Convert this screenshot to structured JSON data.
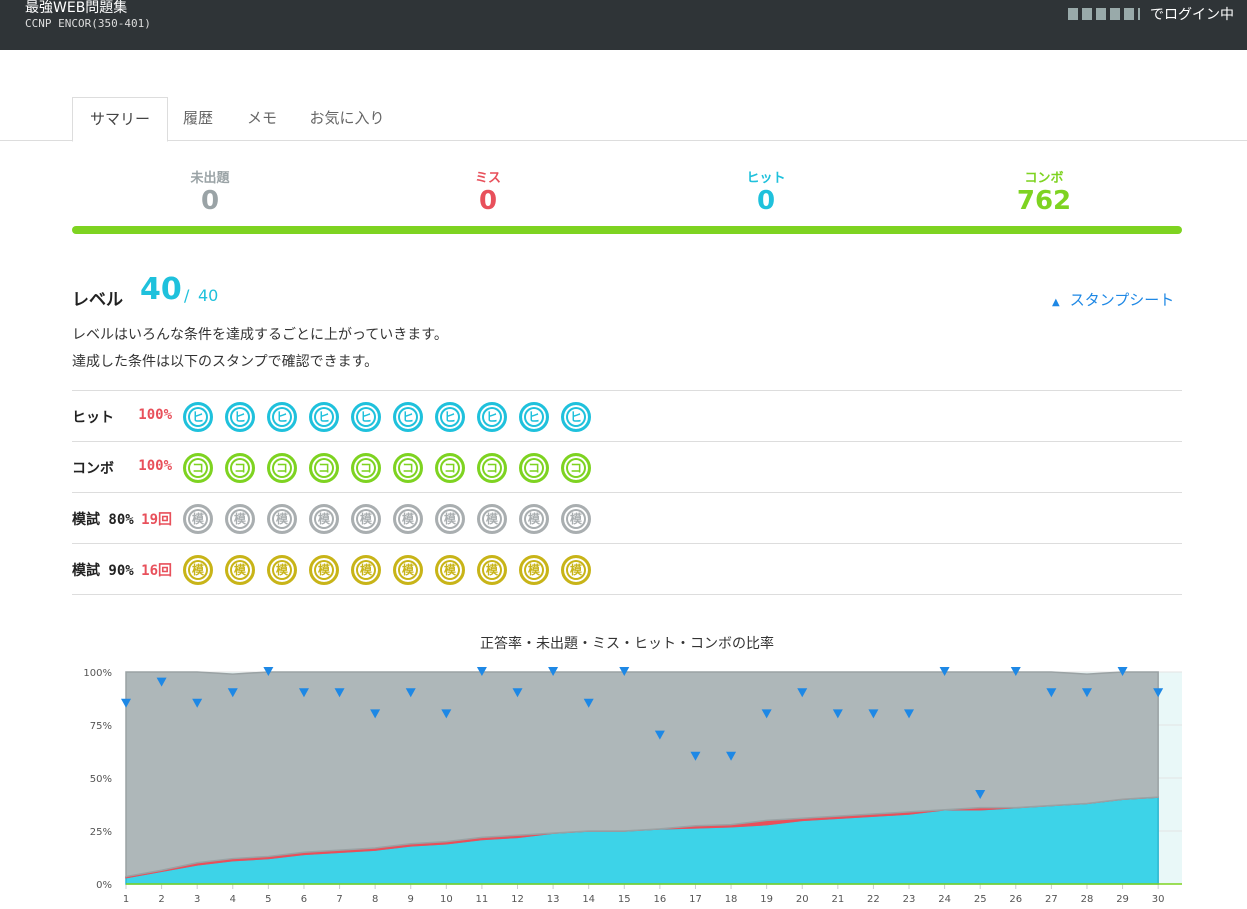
{
  "header": {
    "title": "最強WEB問題集",
    "subtitle": "CCNP ENCOR(350-401)",
    "login": "でログイン中"
  },
  "tabs": [
    "サマリー",
    "履歴",
    "メモ",
    "お気に入り"
  ],
  "stats": [
    {
      "label": "未出題",
      "value": 0,
      "color": "#9aa3a6"
    },
    {
      "label": "ミス",
      "value": 0,
      "color": "#e8505b"
    },
    {
      "label": "ヒット",
      "value": 0,
      "color": "#1fc1dc"
    },
    {
      "label": "コンボ",
      "value": 762,
      "color": "#7ed321"
    }
  ],
  "level": {
    "label": "レベル",
    "value": 40,
    "separator": "/",
    "max": 40,
    "link": "スタンプシート",
    "description": [
      "レベルはいろんな条件を達成するごとに上がっていきます。",
      "達成した条件は以下のスタンプで確認できます。"
    ]
  },
  "stamp_rows": [
    {
      "label": "ヒット",
      "condition": "100%",
      "stamp": "ヒ",
      "count": 10,
      "color": "#1fc1dc"
    },
    {
      "label": "コンボ",
      "condition": "100%",
      "stamp": "コ",
      "count": 10,
      "color": "#7ed321"
    },
    {
      "label": "模試 80%",
      "condition": "19回",
      "stamp": "模",
      "count": 10,
      "color": "#a9aeb0"
    },
    {
      "label": "模試 90%",
      "condition": "16回",
      "stamp": "模",
      "count": 10,
      "color": "#c8b418"
    }
  ],
  "chart_data": {
    "type": "stacked_area",
    "title": "正答率・未出題・ミス・ヒット・コンボの比率",
    "x": [
      1,
      2,
      3,
      4,
      5,
      6,
      7,
      8,
      9,
      10,
      11,
      12,
      13,
      14,
      15,
      16,
      17,
      18,
      19,
      20,
      21,
      22,
      23,
      24,
      25,
      26,
      27,
      28,
      29,
      30
    ],
    "xlim": [
      1,
      30.67
    ],
    "ylim": [
      0,
      100
    ],
    "yticks": [
      {
        "value": 0,
        "label": "0%"
      },
      {
        "value": 25,
        "label": "25%"
      },
      {
        "value": 50,
        "label": "50%"
      },
      {
        "value": 75,
        "label": "75%"
      },
      {
        "value": 100,
        "label": "100%"
      }
    ],
    "series": [
      {
        "color": "#3dd3e8",
        "values": [
          3,
          6,
          9,
          11,
          12,
          14,
          15,
          16,
          18,
          19,
          21,
          22,
          24,
          25,
          25,
          26,
          26.5,
          27,
          28,
          30,
          31,
          32,
          33,
          35,
          35,
          36,
          37,
          38,
          40,
          41
        ]
      },
      {
        "color": "#e8505b",
        "values": [
          0.5,
          0.5,
          1,
          1,
          1,
          1,
          1,
          1,
          1,
          1,
          1,
          1,
          0,
          0,
          0,
          0,
          1,
          1,
          2,
          1,
          1,
          1,
          1,
          0,
          1,
          0,
          0,
          0,
          0,
          0
        ]
      },
      {
        "color": "#aeb7b9",
        "values": [
          96.5,
          93.5,
          90,
          87,
          87,
          85,
          84,
          83,
          81,
          80,
          78,
          77,
          76,
          75,
          75,
          74,
          72.5,
          72,
          70,
          69,
          68,
          67,
          66,
          65,
          64,
          64,
          63,
          61,
          60,
          59
        ]
      }
    ],
    "markers": {
      "color": "#1e88e5",
      "values": [
        85,
        95,
        85,
        90,
        100,
        90,
        90,
        80,
        90,
        80,
        100,
        90,
        100,
        85,
        100,
        70,
        60,
        60,
        80,
        90,
        80,
        80,
        80,
        100,
        42,
        100,
        90,
        90,
        100,
        90
      ]
    }
  }
}
